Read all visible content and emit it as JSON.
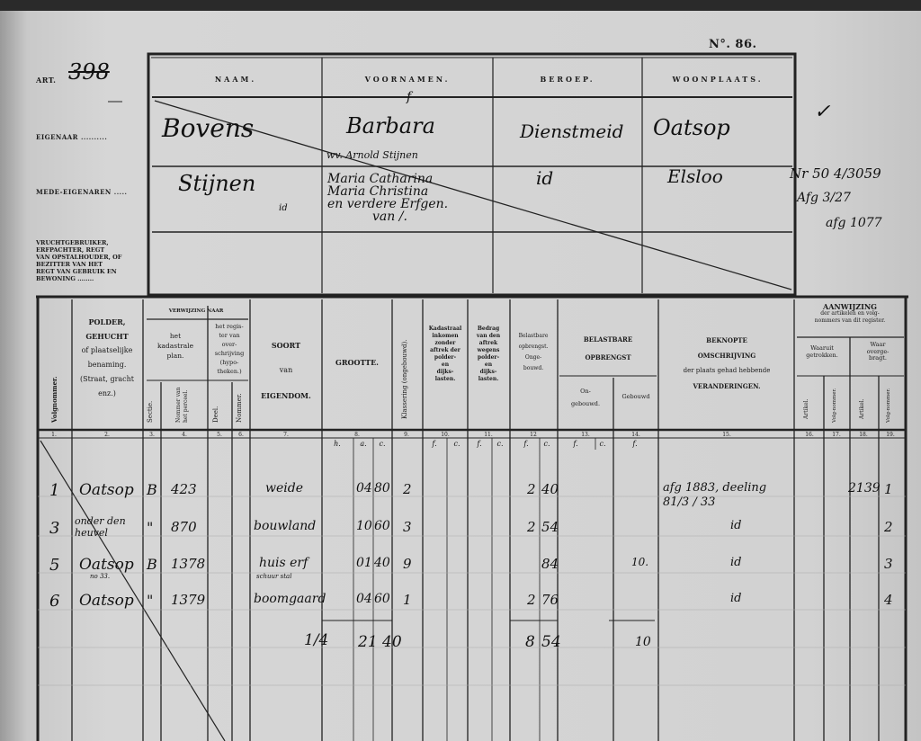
{
  "page_number": "N°. 86.",
  "article": {
    "label": "ART.",
    "number": "398"
  },
  "side_labels": {
    "owner": "EIGENAAR ..........",
    "co_owners": "MEDE-EIGENAREN .....",
    "usufruct": [
      "VRUCHTGEBRUIKER,",
      "ERFPACHTER, REGT",
      "VAN OPSTALHOUDER, OF",
      "BEZITTER VAN HET",
      "REGT VAN GEBRUIK EN",
      "BEWONING ........"
    ]
  },
  "owner_table": {
    "headers": [
      "NAAM.",
      "VOORNAMEN.",
      "BEROEP.",
      "WOONPLAATS."
    ],
    "owner": {
      "naam": "Bovens",
      "voornamen": "Barbara",
      "voornamen_note": "wv. Arnold Stijnen",
      "beroep": "Dienstmeid",
      "woonplaats": "Oatsop",
      "mark": "f"
    },
    "co_owners": {
      "naam": "Stijnen",
      "naam_note": "id",
      "voornamen": [
        "Maria Catharina",
        "Maria Christina",
        "en verdere Erfgen.",
        "van /."
      ],
      "beroep": "id",
      "woonplaats": "Elsloo"
    },
    "margin_notes": [
      "✓",
      "Nr 50 4/3059",
      "Afg 3/27",
      "afg 1077"
    ]
  },
  "parcel_table": {
    "headers": {
      "c1": "Volgnommer.",
      "c2": [
        "POLDER,",
        "GEHUCHT",
        "of plaatselijke",
        "benaming.",
        "(Straat, gracht",
        "enz.)"
      ],
      "verwijzing": "VERWIJZING NAAR",
      "kadastrale": [
        "het",
        "kadastrale",
        "plan."
      ],
      "register": [
        "het regis-",
        "ter van",
        "over-",
        "schrijving",
        "(hypo-",
        "theken.)"
      ],
      "c3": "Sectie.",
      "c4": "Nommer van het perceel.",
      "c5": "Deel.",
      "c6": "Nommer.",
      "c7": [
        "SOORT",
        "van",
        "EIGENDOM."
      ],
      "c8": "GROOTTE.",
      "c9": "Klassering (ongebouwd).",
      "c10": [
        "Kadastraal",
        "inkomen",
        "zonder",
        "aftrek der",
        "polder-",
        "en",
        "dijks-",
        "lasten."
      ],
      "c11": [
        "Bedrag",
        "van den",
        "aftrek",
        "wegens",
        "polder-",
        "en",
        "dijks-",
        "lasten."
      ],
      "c12": [
        "Belastbare",
        "opbrengst.",
        "Onge-",
        "bouwd."
      ],
      "belastbare": [
        "BELASTBARE",
        "OPBRENGST"
      ],
      "c13": [
        "On-",
        "gebouwd."
      ],
      "c14": "Gebouwd",
      "c15": [
        "BEKNOPTE",
        "OMSCHRIJVING",
        "der plaats gehad hebbende",
        "VERANDERINGEN."
      ],
      "aanwijzing": [
        "AANWIJZING",
        "der artikelen en volg-",
        "nommers van dit register."
      ],
      "waaruit": [
        "Waaruit",
        "getrokken."
      ],
      "waar": [
        "Waar",
        "overge-",
        "bragt."
      ],
      "c16": "Artikel.",
      "c17": "Volg-nommer.",
      "c18": "Artikel.",
      "c19": "Volg-nommer.",
      "numbers": [
        "1.",
        "2.",
        "3.",
        "4.",
        "5.",
        "6.",
        "7.",
        "8.",
        "9.",
        "10.",
        "11.",
        "12",
        "13.",
        "14.",
        "15.",
        "16.",
        "17.",
        "18.",
        "19."
      ],
      "units": {
        "h": "h.",
        "a": "a.",
        "c": "c.",
        "f": "f."
      }
    },
    "rows": [
      {
        "volg": "1",
        "plaats": "Oatsop",
        "sectie": "B",
        "nummer": "423",
        "soort": "weide",
        "grootte_a": "04",
        "grootte_c": "80",
        "klasse": "2",
        "opbr_f": "2",
        "opbr_c": "40",
        "gebouwd": "",
        "omschrijving": "afg 1883, deeling 81/3 / 33",
        "artikel": "2139",
        "volgnr": "1"
      },
      {
        "volg": "3",
        "plaats": "onder den heuvel",
        "sectie": "\"",
        "nummer": "870",
        "soort": "bouwland",
        "grootte_a": "10",
        "grootte_c": "60",
        "klasse": "3",
        "opbr_f": "2",
        "opbr_c": "54",
        "gebouwd": "",
        "omschrijving": "id",
        "artikel": "",
        "volgnr": "2"
      },
      {
        "volg": "5",
        "plaats": "Oatsop",
        "plaats_note": "no 33.",
        "sectie": "B",
        "nummer": "1378",
        "soort": "huis erf",
        "soort_note": "schuur stal",
        "grootte_a": "01",
        "grootte_c": "40",
        "klasse": "9",
        "opbr_f": "",
        "opbr_c": "84",
        "gebouwd": "10.",
        "omschrijving": "id",
        "artikel": "",
        "volgnr": "3"
      },
      {
        "volg": "6",
        "plaats": "Oatsop",
        "sectie": "\"",
        "nummer": "1379",
        "soort": "boomgaard",
        "grootte_a": "04",
        "grootte_c": "60",
        "klasse": "1",
        "opbr_f": "2",
        "opbr_c": "76",
        "gebouwd": "",
        "omschrijving": "id",
        "artikel": "",
        "volgnr": "4"
      }
    ],
    "totals": {
      "label": "1/4",
      "grootte": "21 40",
      "opbr_f": "8",
      "opbr_c": "54",
      "gebouwd": "10"
    }
  }
}
